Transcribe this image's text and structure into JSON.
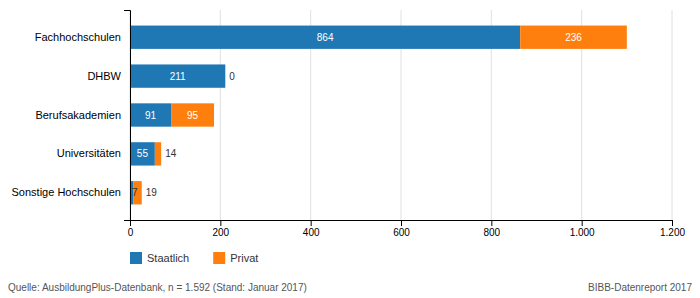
{
  "chart_data": {
    "type": "bar",
    "orientation": "horizontal",
    "stacked": true,
    "categories": [
      "Sonstige Hochschulen",
      "Universitäten",
      "Berufsakademien",
      "DHBW",
      "Fachhochschulen"
    ],
    "series": [
      {
        "name": "Staatlich",
        "values": [
          7,
          55,
          91,
          211,
          864
        ]
      },
      {
        "name": "Privat",
        "values": [
          19,
          14,
          95,
          0,
          236
        ]
      }
    ],
    "xlim": [
      0,
      1200
    ],
    "xticks": [
      0,
      200,
      400,
      600,
      800,
      {
        "value": 1000,
        "label": "1.000"
      },
      {
        "value": 1200,
        "label": "1.200"
      }
    ],
    "grid": true,
    "data_labels": true,
    "legend": "bottom",
    "annotations": [
      "Quelle: AusbildungPlus-Datenbank, n = 1.592 (Stand: Januar 2017)",
      "BIBB-Datenreport 2017"
    ]
  }
}
